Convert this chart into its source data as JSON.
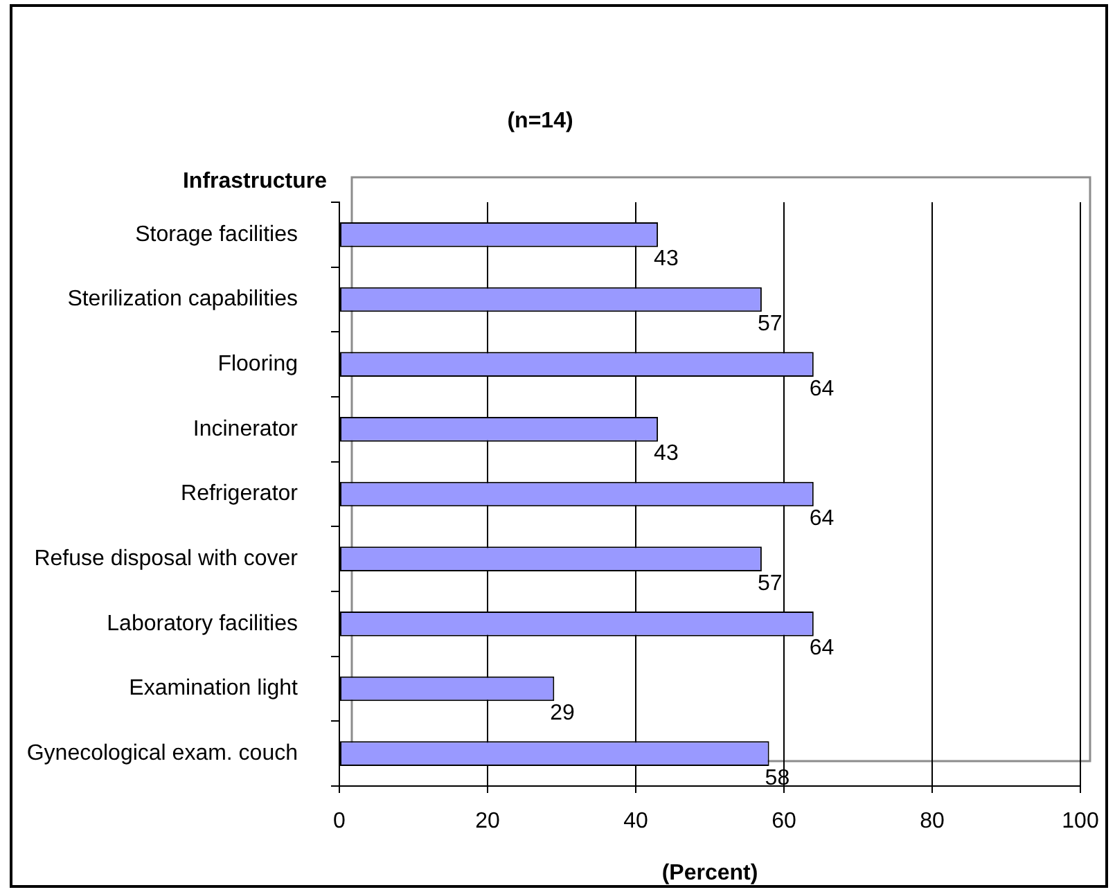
{
  "chart_data": {
    "type": "bar",
    "orientation": "horizontal",
    "title": "(n=14)",
    "ylabel": "Infrastructure",
    "xlabel": "(Percent)",
    "categories": [
      "Storage facilities",
      "Sterilization capabilities",
      "Flooring",
      "Incinerator",
      "Refrigerator",
      "Refuse disposal with cover",
      "Laboratory facilities",
      "Examination light",
      "Gynecological exam. couch"
    ],
    "values": [
      43,
      57,
      64,
      43,
      64,
      57,
      64,
      29,
      58
    ],
    "color": "#9999ff",
    "xlim": [
      0,
      100
    ],
    "xticks": [
      0,
      20,
      40,
      60,
      80,
      100
    ],
    "grid": "x",
    "data_labels": true
  }
}
